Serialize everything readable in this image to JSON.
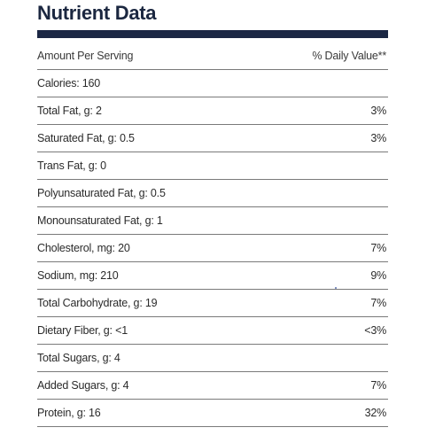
{
  "title": "Nutrient Data",
  "header": {
    "left": "Amount Per Serving",
    "right": "% Daily Value**"
  },
  "rows": [
    {
      "label": "Calories: 160",
      "dv": ""
    },
    {
      "label": "Total Fat, g: 2",
      "dv": "3%"
    },
    {
      "label": "Saturated Fat, g: 0.5",
      "dv": "3%"
    },
    {
      "label": "Trans Fat, g: 0",
      "dv": ""
    },
    {
      "label": "Polyunsaturated Fat, g: 0.5",
      "dv": ""
    },
    {
      "label": "Monounsaturated Fat, g: 1",
      "dv": ""
    },
    {
      "label": "Cholesterol, mg: 20",
      "dv": "7%"
    },
    {
      "label": "Sodium, mg: 210",
      "dv": "9%"
    },
    {
      "label": "Total Carbohydrate, g: 19",
      "dv": "7%"
    },
    {
      "label": "Dietary Fiber, g: <1",
      "dv": "<3%"
    },
    {
      "label": "Total Sugars, g: 4",
      "dv": ""
    },
    {
      "label": "Added Sugars, g: 4",
      "dv": "7%"
    },
    {
      "label": "Protein, g: 16",
      "dv": "32%"
    }
  ]
}
